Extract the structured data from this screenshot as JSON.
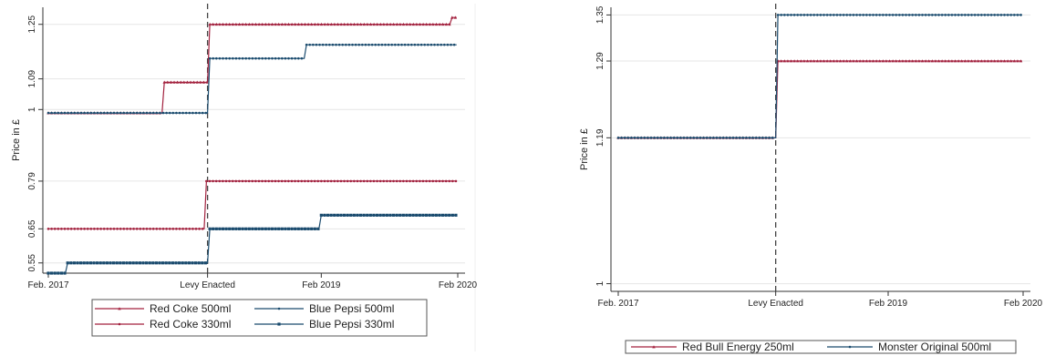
{
  "colors": {
    "red": "#a3223f",
    "blue": "#1a4b6e",
    "grid": "#e6e6e6",
    "axis": "#333333"
  },
  "chart_data": [
    {
      "type": "line",
      "title": "",
      "xlabel": "",
      "ylabel": "Price in £",
      "x_ticks": [
        {
          "label": "Feb. 2017",
          "t": 0
        },
        {
          "label": "Levy Enacted",
          "t": 14
        },
        {
          "label": "Feb 2019",
          "t": 24
        },
        {
          "label": "Feb 2020",
          "t": 36
        }
      ],
      "y_ticks": [
        0.55,
        0.65,
        0.79,
        1,
        1.09,
        1.25
      ],
      "ylim": [
        0.52,
        1.3
      ],
      "vline": {
        "label": "Levy Enacted",
        "t": 14
      },
      "series": [
        {
          "name": "Red Coke 500ml",
          "color": "red",
          "marker": "triangle",
          "steps": [
            [
              0,
              0.99
            ],
            [
              10,
              1.08
            ],
            [
              14,
              1.25
            ],
            [
              35.3,
              1.27
            ]
          ]
        },
        {
          "name": "Blue Pepsi 500ml",
          "color": "blue",
          "marker": "dot",
          "steps": [
            [
              0,
              0.99
            ],
            [
              14,
              1.15
            ],
            [
              22.5,
              1.19
            ]
          ]
        },
        {
          "name": "Red Coke 330ml",
          "color": "red",
          "marker": "dot",
          "steps": [
            [
              0,
              0.65
            ],
            [
              13.7,
              0.79
            ]
          ]
        },
        {
          "name": "Blue Pepsi 330ml",
          "color": "blue",
          "marker": "square",
          "steps": [
            [
              0,
              0.52
            ],
            [
              1.5,
              0.55
            ],
            [
              14,
              0.65
            ],
            [
              23.8,
              0.69
            ]
          ]
        }
      ],
      "legend_position": "bottom"
    },
    {
      "type": "line",
      "title": "",
      "xlabel": "",
      "ylabel": "Price in £",
      "x_ticks": [
        {
          "label": "Feb. 2017",
          "t": 0
        },
        {
          "label": "Levy Enacted",
          "t": 14
        },
        {
          "label": "Feb 2019",
          "t": 24
        },
        {
          "label": "Feb 2020",
          "t": 36
        }
      ],
      "y_ticks": [
        1,
        1.19,
        1.29,
        1.35
      ],
      "ylim": [
        0.99,
        1.36
      ],
      "vline": {
        "label": "Levy Enacted",
        "t": 14
      },
      "series": [
        {
          "name": "Red Bull Energy 250ml",
          "color": "red",
          "marker": "triangle",
          "steps": [
            [
              0,
              1.19
            ],
            [
              14,
              1.29
            ]
          ]
        },
        {
          "name": "Monster Original 500ml",
          "color": "blue",
          "marker": "dot",
          "steps": [
            [
              0,
              1.19
            ],
            [
              14,
              1.35
            ]
          ]
        }
      ],
      "legend_position": "bottom"
    }
  ]
}
